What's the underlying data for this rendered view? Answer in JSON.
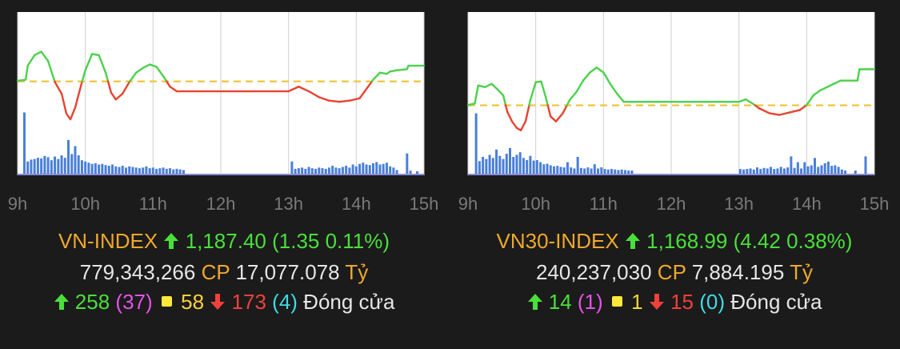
{
  "colors": {
    "background": "#1b1b1b",
    "plot_background": "#ffffff",
    "grid": "#cfcfcf",
    "volume_bars": "#4a7fd9",
    "line_up": "#4cd14a",
    "line_down": "#e8432f",
    "reference_line": "#f2c230",
    "tick_text": "#7a7a7a"
  },
  "panels": [
    {
      "index_name": "VN-INDEX",
      "value": "1,187.40",
      "change": "(1.35 0.11%)",
      "volume": "779,343,266",
      "volume_unit": "CP",
      "turnover": "17,077.078",
      "turnover_unit": "Tỷ",
      "advancers": "258",
      "ceiling": "(37)",
      "unchanged": "58",
      "decliners": "173",
      "floor": "(4)",
      "status": "Đóng cửa",
      "icons": {
        "up": "arrow-up-icon",
        "flat": "yellow-square-icon",
        "down": "arrow-down-icon"
      }
    },
    {
      "index_name": "VN30-INDEX",
      "value": "1,168.99",
      "change": "(4.42 0.38%)",
      "volume": "240,237,030",
      "volume_unit": "CP",
      "turnover": "7,884.195",
      "turnover_unit": "Tỷ",
      "advancers": "14",
      "ceiling": "(1)",
      "unchanged": "1",
      "decliners": "15",
      "floor": "(0)",
      "status": "Đóng cửa",
      "icons": {
        "up": "arrow-up-icon",
        "flat": "yellow-square-icon",
        "down": "arrow-down-icon"
      }
    }
  ],
  "chart_data": [
    {
      "type": "line",
      "x_ticks": [
        "9h",
        "10h",
        "11h",
        "12h",
        "13h",
        "14h",
        "15h"
      ],
      "xlim": [
        9,
        15
      ],
      "ylim": [
        1178,
        1192
      ],
      "reference": 1186.05,
      "price_line": [
        [
          9.0,
          1186.1
        ],
        [
          9.12,
          1186.2
        ],
        [
          9.15,
          1187.4
        ],
        [
          9.25,
          1188.3
        ],
        [
          9.35,
          1188.6
        ],
        [
          9.45,
          1187.8
        ],
        [
          9.55,
          1186.0
        ],
        [
          9.65,
          1185.0
        ],
        [
          9.72,
          1183.3
        ],
        [
          9.78,
          1182.8
        ],
        [
          9.85,
          1183.8
        ],
        [
          9.95,
          1186.0
        ],
        [
          10.0,
          1187.0
        ],
        [
          10.1,
          1188.4
        ],
        [
          10.2,
          1188.3
        ],
        [
          10.3,
          1186.8
        ],
        [
          10.38,
          1185.1
        ],
        [
          10.45,
          1184.5
        ],
        [
          10.55,
          1185.0
        ],
        [
          10.65,
          1186.0
        ],
        [
          10.75,
          1186.8
        ],
        [
          10.85,
          1187.2
        ],
        [
          10.95,
          1187.5
        ],
        [
          11.05,
          1187.3
        ],
        [
          11.15,
          1186.5
        ],
        [
          11.25,
          1185.6
        ],
        [
          11.35,
          1185.2
        ],
        [
          11.5,
          1185.2
        ],
        [
          12.0,
          1185.2
        ],
        [
          12.5,
          1185.2
        ],
        [
          13.0,
          1185.2
        ],
        [
          13.15,
          1185.6
        ],
        [
          13.3,
          1185.2
        ],
        [
          13.45,
          1184.7
        ],
        [
          13.6,
          1184.4
        ],
        [
          13.75,
          1184.3
        ],
        [
          13.9,
          1184.4
        ],
        [
          14.05,
          1184.6
        ],
        [
          14.15,
          1185.4
        ],
        [
          14.25,
          1186.2
        ],
        [
          14.35,
          1186.8
        ],
        [
          14.45,
          1186.7
        ],
        [
          14.5,
          1186.9
        ],
        [
          14.6,
          1187.0
        ],
        [
          14.75,
          1187.1
        ],
        [
          14.77,
          1187.4
        ],
        [
          15.0,
          1187.4
        ]
      ],
      "volume": [
        [
          9.1,
          10.0
        ],
        [
          9.15,
          2.0
        ],
        [
          9.2,
          2.3
        ],
        [
          9.25,
          2.4
        ],
        [
          9.3,
          2.6
        ],
        [
          9.35,
          2.5
        ],
        [
          9.4,
          2.9
        ],
        [
          9.45,
          2.7
        ],
        [
          9.5,
          2.2
        ],
        [
          9.55,
          2.8
        ],
        [
          9.6,
          2.4
        ],
        [
          9.65,
          3.0
        ],
        [
          9.7,
          2.6
        ],
        [
          9.75,
          5.5
        ],
        [
          9.8,
          3.2
        ],
        [
          9.85,
          4.5
        ],
        [
          9.9,
          3.0
        ],
        [
          9.95,
          2.2
        ],
        [
          10.0,
          2.0
        ],
        [
          10.05,
          1.8
        ],
        [
          10.1,
          1.6
        ],
        [
          10.15,
          1.7
        ],
        [
          10.2,
          1.5
        ],
        [
          10.25,
          1.6
        ],
        [
          10.3,
          1.4
        ],
        [
          10.35,
          1.3
        ],
        [
          10.4,
          1.5
        ],
        [
          10.45,
          1.2
        ],
        [
          10.5,
          1.1
        ],
        [
          10.55,
          1.3
        ],
        [
          10.6,
          1.0
        ],
        [
          10.65,
          1.2
        ],
        [
          10.7,
          1.1
        ],
        [
          10.75,
          1.0
        ],
        [
          10.8,
          0.9
        ],
        [
          10.85,
          1.0
        ],
        [
          10.9,
          1.2
        ],
        [
          10.95,
          0.9
        ],
        [
          11.0,
          1.0
        ],
        [
          11.05,
          0.8
        ],
        [
          11.1,
          0.9
        ],
        [
          11.15,
          1.0
        ],
        [
          11.2,
          0.8
        ],
        [
          11.25,
          0.9
        ],
        [
          11.3,
          0.7
        ],
        [
          11.35,
          0.8
        ],
        [
          11.4,
          0.7
        ],
        [
          11.45,
          0.6
        ],
        [
          13.05,
          2.0
        ],
        [
          13.1,
          0.8
        ],
        [
          13.15,
          0.9
        ],
        [
          13.2,
          1.0
        ],
        [
          13.25,
          0.8
        ],
        [
          13.3,
          1.1
        ],
        [
          13.35,
          0.9
        ],
        [
          13.4,
          0.8
        ],
        [
          13.45,
          1.0
        ],
        [
          13.5,
          0.9
        ],
        [
          13.55,
          0.8
        ],
        [
          13.6,
          1.0
        ],
        [
          13.65,
          1.3
        ],
        [
          13.7,
          1.0
        ],
        [
          13.75,
          0.9
        ],
        [
          13.8,
          1.1
        ],
        [
          13.85,
          1.3
        ],
        [
          13.9,
          1.0
        ],
        [
          13.95,
          1.5
        ],
        [
          14.0,
          1.2
        ],
        [
          14.05,
          1.6
        ],
        [
          14.1,
          1.8
        ],
        [
          14.15,
          1.5
        ],
        [
          14.2,
          1.4
        ],
        [
          14.25,
          1.7
        ],
        [
          14.3,
          1.9
        ],
        [
          14.35,
          1.5
        ],
        [
          14.4,
          1.6
        ],
        [
          14.45,
          1.8
        ],
        [
          14.5,
          1.2
        ],
        [
          14.55,
          1.0
        ],
        [
          14.6,
          0.6
        ],
        [
          14.75,
          3.3
        ],
        [
          14.8,
          0.5
        ],
        [
          14.9,
          0.4
        ]
      ],
      "volume_max": 12
    },
    {
      "type": "line",
      "x_ticks": [
        "9h",
        "10h",
        "11h",
        "12h",
        "13h",
        "14h",
        "15h"
      ],
      "xlim": [
        9,
        15
      ],
      "ylim": [
        1156,
        1176
      ],
      "reference": 1164.57,
      "price_line": [
        [
          9.0,
          1164.6
        ],
        [
          9.1,
          1164.8
        ],
        [
          9.15,
          1167.0
        ],
        [
          9.25,
          1166.8
        ],
        [
          9.35,
          1167.2
        ],
        [
          9.45,
          1166.4
        ],
        [
          9.52,
          1165.8
        ],
        [
          9.58,
          1163.8
        ],
        [
          9.65,
          1162.6
        ],
        [
          9.72,
          1161.8
        ],
        [
          9.78,
          1161.5
        ],
        [
          9.85,
          1162.6
        ],
        [
          9.92,
          1165.2
        ],
        [
          10.0,
          1167.4
        ],
        [
          10.08,
          1167.5
        ],
        [
          10.15,
          1165.5
        ],
        [
          10.22,
          1163.2
        ],
        [
          10.3,
          1162.6
        ],
        [
          10.4,
          1163.6
        ],
        [
          10.5,
          1165.2
        ],
        [
          10.6,
          1166.2
        ],
        [
          10.7,
          1167.6
        ],
        [
          10.8,
          1168.6
        ],
        [
          10.9,
          1169.2
        ],
        [
          11.0,
          1168.6
        ],
        [
          11.1,
          1167.2
        ],
        [
          11.2,
          1166.0
        ],
        [
          11.3,
          1165.0
        ],
        [
          11.45,
          1165.0
        ],
        [
          12.0,
          1165.0
        ],
        [
          12.5,
          1165.0
        ],
        [
          13.0,
          1165.0
        ],
        [
          13.1,
          1165.3
        ],
        [
          13.2,
          1164.8
        ],
        [
          13.3,
          1164.2
        ],
        [
          13.45,
          1163.6
        ],
        [
          13.6,
          1163.4
        ],
        [
          13.75,
          1163.7
        ],
        [
          13.9,
          1164.0
        ],
        [
          14.0,
          1164.6
        ],
        [
          14.1,
          1165.8
        ],
        [
          14.2,
          1166.4
        ],
        [
          14.3,
          1166.8
        ],
        [
          14.4,
          1167.2
        ],
        [
          14.5,
          1167.6
        ],
        [
          14.75,
          1167.6
        ],
        [
          14.78,
          1168.99
        ],
        [
          15.0,
          1168.99
        ]
      ],
      "volume": [
        [
          9.12,
          11.5
        ],
        [
          9.17,
          2.4
        ],
        [
          9.22,
          3.2
        ],
        [
          9.27,
          2.8
        ],
        [
          9.32,
          3.6
        ],
        [
          9.37,
          3.0
        ],
        [
          9.42,
          4.6
        ],
        [
          9.47,
          3.4
        ],
        [
          9.52,
          2.8
        ],
        [
          9.57,
          3.8
        ],
        [
          9.62,
          4.9
        ],
        [
          9.67,
          3.2
        ],
        [
          9.72,
          3.6
        ],
        [
          9.77,
          4.1
        ],
        [
          9.82,
          3.0
        ],
        [
          9.87,
          2.6
        ],
        [
          9.92,
          3.4
        ],
        [
          9.97,
          2.5
        ],
        [
          10.02,
          2.6
        ],
        [
          10.07,
          2.2
        ],
        [
          10.12,
          1.8
        ],
        [
          10.17,
          1.9
        ],
        [
          10.22,
          1.6
        ],
        [
          10.27,
          1.4
        ],
        [
          10.32,
          1.5
        ],
        [
          10.37,
          1.3
        ],
        [
          10.42,
          1.2
        ],
        [
          10.47,
          2.2
        ],
        [
          10.52,
          1.2
        ],
        [
          10.57,
          1.0
        ],
        [
          10.62,
          3.2
        ],
        [
          10.67,
          1.1
        ],
        [
          10.72,
          1.0
        ],
        [
          10.77,
          1.2
        ],
        [
          10.82,
          1.0
        ],
        [
          10.87,
          1.8
        ],
        [
          10.92,
          1.0
        ],
        [
          10.97,
          1.2
        ],
        [
          11.02,
          0.9
        ],
        [
          11.07,
          0.8
        ],
        [
          11.12,
          0.9
        ],
        [
          11.17,
          0.8
        ],
        [
          11.22,
          0.7
        ],
        [
          11.27,
          0.8
        ],
        [
          11.32,
          0.7
        ],
        [
          11.37,
          0.6
        ],
        [
          11.42,
          0.6
        ],
        [
          13.02,
          0.9
        ],
        [
          13.07,
          0.8
        ],
        [
          13.12,
          0.9
        ],
        [
          13.17,
          1.0
        ],
        [
          13.22,
          0.8
        ],
        [
          13.27,
          1.2
        ],
        [
          13.32,
          0.9
        ],
        [
          13.37,
          1.1
        ],
        [
          13.42,
          1.0
        ],
        [
          13.47,
          1.3
        ],
        [
          13.52,
          0.9
        ],
        [
          13.57,
          1.0
        ],
        [
          13.62,
          1.3
        ],
        [
          13.67,
          1.0
        ],
        [
          13.72,
          1.2
        ],
        [
          13.77,
          3.3
        ],
        [
          13.82,
          1.1
        ],
        [
          13.87,
          2.2
        ],
        [
          13.92,
          1.0
        ],
        [
          13.97,
          2.2
        ],
        [
          14.02,
          1.4
        ],
        [
          14.07,
          1.6
        ],
        [
          14.12,
          3.0
        ],
        [
          14.17,
          1.3
        ],
        [
          14.22,
          1.6
        ],
        [
          14.27,
          2.0
        ],
        [
          14.32,
          2.3
        ],
        [
          14.37,
          1.5
        ],
        [
          14.42,
          1.6
        ],
        [
          14.47,
          1.3
        ],
        [
          14.52,
          0.8
        ],
        [
          14.57,
          0.6
        ],
        [
          14.72,
          0.6
        ],
        [
          14.87,
          3.3
        ]
      ],
      "volume_max": 14
    }
  ]
}
